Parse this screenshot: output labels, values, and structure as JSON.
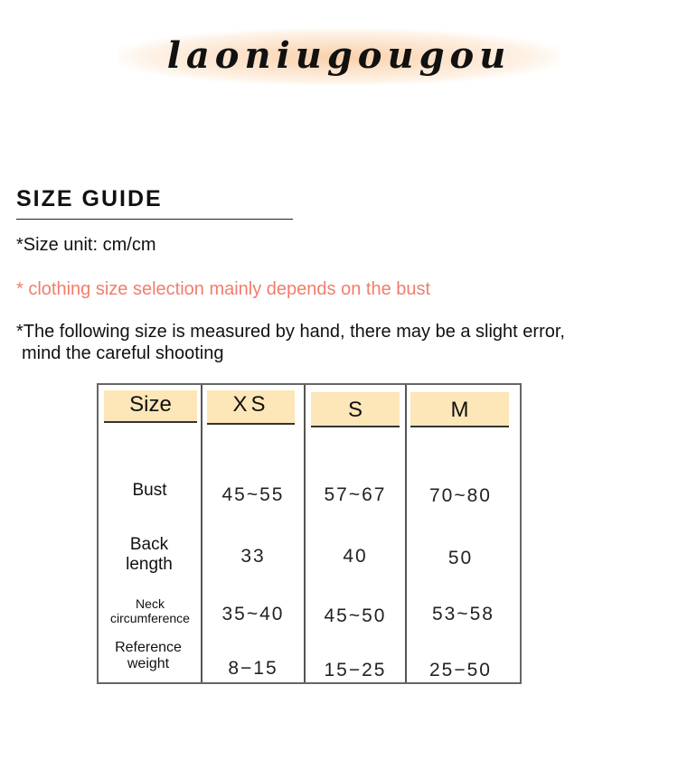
{
  "logo": {
    "text": "laoniugougou"
  },
  "title": "SIZE GUIDE",
  "notes": {
    "unit": "*Size unit: cm/cm",
    "selection": "* clothing size selection mainly depends on the bust",
    "error_line1": "*The following size is measured by hand, there may be a slight error,",
    "error_line2": "mind the careful shooting"
  },
  "colors": {
    "accent": "#f27d6b",
    "header_fill": "#fde6b8"
  },
  "table": {
    "headers": [
      "Size",
      "XS",
      "S",
      "M"
    ],
    "rows": [
      {
        "label": "Bust",
        "values": [
          "45~55",
          "57~67",
          "70~80"
        ]
      },
      {
        "label": "Back length",
        "values": [
          "33",
          "40",
          "50"
        ]
      },
      {
        "label": "Neck circumference",
        "values": [
          "35~40",
          "45~50",
          "53~58"
        ]
      },
      {
        "label": "Reference weight",
        "values": [
          "8−15",
          "15−25",
          "25−50"
        ]
      }
    ]
  }
}
